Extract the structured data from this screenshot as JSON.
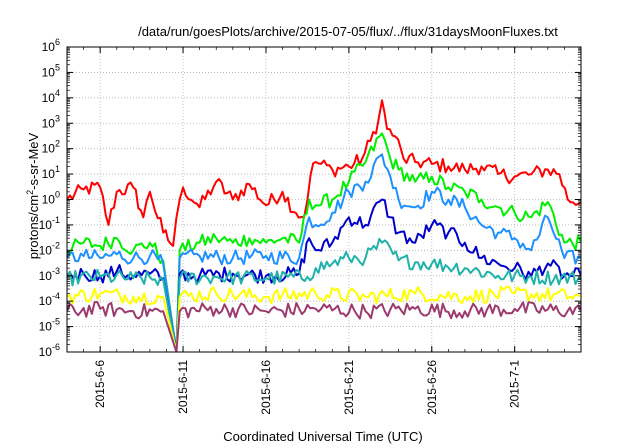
{
  "chart_data": {
    "type": "line",
    "title": "/data/run/goesPlots/archive/2015-07-05/flux/../flux/31daysMoonFluxes.txt",
    "xlabel": "Coordinated Universal Time (UTC)",
    "ylabel": {
      "pre": "protons/cm",
      "sup": "2",
      "post": "-s-sr-MeV"
    },
    "yscale": "log",
    "ylim": [
      1e-06,
      1000000.0
    ],
    "xlim": [
      "2015-06-04",
      "2015-07-05"
    ],
    "grid": true,
    "legend": "none",
    "y_ticks": [
      {
        "value": 1e-06,
        "exp": "-6"
      },
      {
        "value": 1e-05,
        "exp": "-5"
      },
      {
        "value": 0.0001,
        "exp": "-4"
      },
      {
        "value": 0.001,
        "exp": "-3"
      },
      {
        "value": 0.01,
        "exp": "-2"
      },
      {
        "value": 0.1,
        "exp": "-1"
      },
      {
        "value": 1,
        "exp": "0"
      },
      {
        "value": 10.0,
        "exp": "1"
      },
      {
        "value": 100.0,
        "exp": "2"
      },
      {
        "value": 1000.0,
        "exp": "3"
      },
      {
        "value": 10000.0,
        "exp": "4"
      },
      {
        "value": 100000.0,
        "exp": "5"
      },
      {
        "value": 1000000.0,
        "exp": "6"
      }
    ],
    "x_ticks": [
      {
        "date": "2015-06-06",
        "label": "2015-6-6"
      },
      {
        "date": "2015-06-11",
        "label": "2015-6-11"
      },
      {
        "date": "2015-06-16",
        "label": "2015-6-16"
      },
      {
        "date": "2015-06-21",
        "label": "2015-6-21"
      },
      {
        "date": "2015-06-26",
        "label": "2015-6-26"
      },
      {
        "date": "2015-07-01",
        "label": "2015-7-1"
      }
    ],
    "series": [
      {
        "color": "#ff0000",
        "points": [
          [
            "2015-06-04",
            1.0
          ],
          [
            "2015-06-05",
            2.5
          ],
          [
            "2015-06-06",
            3.0
          ],
          [
            "2015-06-06.5",
            0.1
          ],
          [
            "2015-06-07",
            2.0
          ],
          [
            "2015-06-08",
            3.0
          ],
          [
            "2015-06-08.6",
            0.2
          ],
          [
            "2015-06-09",
            2.0
          ],
          [
            "2015-06-09.8",
            0.05
          ],
          [
            "2015-06-10.4",
            0.015
          ],
          [
            "2015-06-10.8",
            1.0
          ],
          [
            "2015-06-11",
            3.0
          ],
          [
            "2015-06-12",
            0.5
          ],
          [
            "2015-06-13",
            5.0
          ],
          [
            "2015-06-14",
            1.0
          ],
          [
            "2015-06-15",
            4.0
          ],
          [
            "2015-06-16",
            0.6
          ],
          [
            "2015-06-17",
            2.0
          ],
          [
            "2015-06-17.8",
            0.3
          ],
          [
            "2015-06-18.3",
            0.2
          ],
          [
            "2015-06-18.7",
            10.0
          ],
          [
            "2015-06-19",
            30.0
          ],
          [
            "2015-06-20",
            15.0
          ],
          [
            "2015-06-21",
            20.0
          ],
          [
            "2015-06-21.8",
            40.0
          ],
          [
            "2015-06-22.3",
            200.0
          ],
          [
            "2015-06-22.8",
            1500.0
          ],
          [
            "2015-06-23",
            8000.0
          ],
          [
            "2015-06-23.3",
            600.0
          ],
          [
            "2015-06-23.8",
            300.0
          ],
          [
            "2015-06-24.3",
            40.0
          ],
          [
            "2015-06-25",
            30.0
          ],
          [
            "2015-06-26",
            25.0
          ],
          [
            "2015-06-27",
            20.0
          ],
          [
            "2015-06-28",
            15.0
          ],
          [
            "2015-06-29",
            20.0
          ],
          [
            "2015-06-30",
            10.0
          ],
          [
            "2015-07-01",
            8.0
          ],
          [
            "2015-07-02",
            10.0
          ],
          [
            "2015-07-03",
            15.0
          ],
          [
            "2015-07-03.7",
            10.0
          ],
          [
            "2015-07-04.2",
            1.0
          ],
          [
            "2015-07-05",
            0.8
          ]
        ]
      },
      {
        "color": "#00ee00",
        "points": [
          [
            "2015-06-04",
            0.01
          ],
          [
            "2015-06-05",
            0.02
          ],
          [
            "2015-06-06",
            0.015
          ],
          [
            "2015-06-07",
            0.03
          ],
          [
            "2015-06-08",
            0.01
          ],
          [
            "2015-06-09",
            0.02
          ],
          [
            "2015-06-09.8",
            0.004
          ],
          [
            "2015-06-10.6",
            1e-06
          ],
          [
            "2015-06-10.8",
            0.01
          ],
          [
            "2015-06-12",
            0.02
          ],
          [
            "2015-06-13",
            0.03
          ],
          [
            "2015-06-14",
            0.02
          ],
          [
            "2015-06-15",
            0.03
          ],
          [
            "2015-06-16",
            0.02
          ],
          [
            "2015-06-17",
            0.03
          ],
          [
            "2015-06-18",
            0.02
          ],
          [
            "2015-06-18.6",
            1.0
          ],
          [
            "2015-06-19",
            0.6
          ],
          [
            "2015-06-20",
            1.0
          ],
          [
            "2015-06-21",
            5.0
          ],
          [
            "2015-06-22",
            30.0
          ],
          [
            "2015-06-23",
            400.0
          ],
          [
            "2015-06-23.5",
            40.0
          ],
          [
            "2015-06-24",
            15.0
          ],
          [
            "2015-06-25",
            5.0
          ],
          [
            "2015-06-26",
            8.0
          ],
          [
            "2015-06-27",
            3.0
          ],
          [
            "2015-06-28",
            2.0
          ],
          [
            "2015-06-29",
            1.0
          ],
          [
            "2015-06-30",
            0.5
          ],
          [
            "2015-07-01",
            0.3
          ],
          [
            "2015-07-02",
            0.2
          ],
          [
            "2015-07-03",
            0.8
          ],
          [
            "2015-07-04",
            0.02
          ],
          [
            "2015-07-05",
            0.02
          ]
        ]
      },
      {
        "color": "#1e90ff",
        "points": [
          [
            "2015-06-04",
            0.005
          ],
          [
            "2015-06-05",
            0.006
          ],
          [
            "2015-06-06",
            0.005
          ],
          [
            "2015-06-07",
            0.007
          ],
          [
            "2015-06-08",
            0.005
          ],
          [
            "2015-06-09",
            0.006
          ],
          [
            "2015-06-09.8",
            0.003
          ],
          [
            "2015-06-10.6",
            1e-06
          ],
          [
            "2015-06-10.8",
            0.005
          ],
          [
            "2015-06-12",
            0.006
          ],
          [
            "2015-06-14",
            0.005
          ],
          [
            "2015-06-16",
            0.006
          ],
          [
            "2015-06-18",
            0.005
          ],
          [
            "2015-06-18.6",
            0.2
          ],
          [
            "2015-06-19",
            0.1
          ],
          [
            "2015-06-20",
            0.3
          ],
          [
            "2015-06-21",
            2.0
          ],
          [
            "2015-06-22",
            5.0
          ],
          [
            "2015-06-23",
            60.0
          ],
          [
            "2015-06-23.5",
            8.0
          ],
          [
            "2015-06-24",
            1.0
          ],
          [
            "2015-06-25",
            0.5
          ],
          [
            "2015-06-26",
            2.0
          ],
          [
            "2015-06-27",
            1.0
          ],
          [
            "2015-06-28",
            0.5
          ],
          [
            "2015-06-29",
            0.1
          ],
          [
            "2015-06-30",
            0.05
          ],
          [
            "2015-07-01",
            0.03
          ],
          [
            "2015-07-02",
            0.01
          ],
          [
            "2015-07-03",
            0.2
          ],
          [
            "2015-07-04",
            0.005
          ],
          [
            "2015-07-05",
            0.005
          ]
        ]
      },
      {
        "color": "#0000cc",
        "points": [
          [
            "2015-06-04",
            0.001
          ],
          [
            "2015-06-05",
            0.0012
          ],
          [
            "2015-06-06",
            0.001
          ],
          [
            "2015-06-07",
            0.0015
          ],
          [
            "2015-06-08",
            0.001
          ],
          [
            "2015-06-09",
            0.0012
          ],
          [
            "2015-06-09.8",
            0.0008
          ],
          [
            "2015-06-10.6",
            1e-06
          ],
          [
            "2015-06-10.8",
            0.0012
          ],
          [
            "2015-06-12",
            0.001
          ],
          [
            "2015-06-14",
            0.0012
          ],
          [
            "2015-06-16",
            0.001
          ],
          [
            "2015-06-18",
            0.0012
          ],
          [
            "2015-06-18.6",
            0.03
          ],
          [
            "2015-06-19",
            0.01
          ],
          [
            "2015-06-20",
            0.02
          ],
          [
            "2015-06-21",
            0.2
          ],
          [
            "2015-06-22",
            0.1
          ],
          [
            "2015-06-23",
            1.0
          ],
          [
            "2015-06-23.5",
            0.2
          ],
          [
            "2015-06-24",
            0.05
          ],
          [
            "2015-06-25",
            0.02
          ],
          [
            "2015-06-26",
            0.1
          ],
          [
            "2015-06-27",
            0.05
          ],
          [
            "2015-06-28",
            0.02
          ],
          [
            "2015-06-29",
            0.005
          ],
          [
            "2015-06-30",
            0.003
          ],
          [
            "2015-07-01",
            0.002
          ],
          [
            "2015-07-02",
            0.001
          ],
          [
            "2015-07-03",
            0.003
          ],
          [
            "2015-07-04",
            0.001
          ],
          [
            "2015-07-05",
            0.001
          ]
        ]
      },
      {
        "color": "#20b2aa",
        "points": [
          [
            "2015-06-04",
            0.0008
          ],
          [
            "2015-06-06",
            0.0009
          ],
          [
            "2015-06-08",
            0.0008
          ],
          [
            "2015-06-09.8",
            0.0007
          ],
          [
            "2015-06-10.6",
            1e-06
          ],
          [
            "2015-06-10.8",
            0.0008
          ],
          [
            "2015-06-13",
            0.0009
          ],
          [
            "2015-06-16",
            0.0008
          ],
          [
            "2015-06-18.5",
            0.0009
          ],
          [
            "2015-06-19",
            0.002
          ],
          [
            "2015-06-20",
            0.003
          ],
          [
            "2015-06-21",
            0.005
          ],
          [
            "2015-06-22",
            0.005
          ],
          [
            "2015-06-23",
            0.02
          ],
          [
            "2015-06-24",
            0.004
          ],
          [
            "2015-06-26",
            0.003
          ],
          [
            "2015-06-28",
            0.002
          ],
          [
            "2015-06-30",
            0.001
          ],
          [
            "2015-07-02",
            0.0009
          ],
          [
            "2015-07-05",
            0.0008
          ]
        ]
      },
      {
        "color": "#ffff00",
        "points": [
          [
            "2015-06-04",
            0.00015
          ],
          [
            "2015-06-06",
            0.0002
          ],
          [
            "2015-06-08",
            0.00015
          ],
          [
            "2015-06-09.8",
            0.00015
          ],
          [
            "2015-06-10.6",
            1e-06
          ],
          [
            "2015-06-10.8",
            0.00015
          ],
          [
            "2015-06-13",
            0.0002
          ],
          [
            "2015-06-16",
            0.00015
          ],
          [
            "2015-06-19",
            0.0002
          ],
          [
            "2015-06-22",
            0.00015
          ],
          [
            "2015-06-25",
            0.0002
          ],
          [
            "2015-06-28",
            0.00015
          ],
          [
            "2015-07-01",
            0.0002
          ],
          [
            "2015-07-05",
            0.00015
          ]
        ]
      },
      {
        "color": "#9c3a6e",
        "points": [
          [
            "2015-06-04",
            4e-05
          ],
          [
            "2015-06-06",
            5e-05
          ],
          [
            "2015-06-08",
            4e-05
          ],
          [
            "2015-06-09.8",
            4e-05
          ],
          [
            "2015-06-10.6",
            1e-06
          ],
          [
            "2015-06-10.8",
            4e-05
          ],
          [
            "2015-06-13",
            5e-05
          ],
          [
            "2015-06-16",
            4e-05
          ],
          [
            "2015-06-19",
            5e-05
          ],
          [
            "2015-06-22",
            4e-05
          ],
          [
            "2015-06-25",
            5e-05
          ],
          [
            "2015-06-28",
            4e-05
          ],
          [
            "2015-07-01",
            5e-05
          ],
          [
            "2015-07-05",
            4e-05
          ]
        ]
      }
    ]
  }
}
